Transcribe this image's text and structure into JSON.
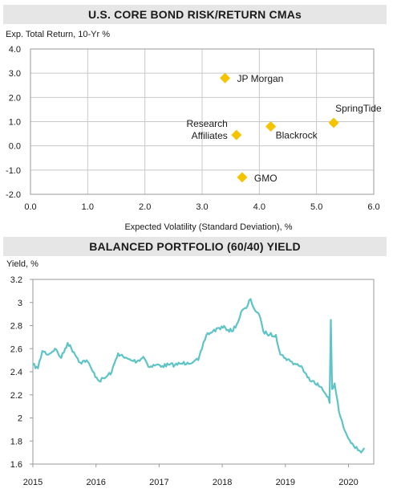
{
  "chart_data": [
    {
      "type": "scatter",
      "title": "U.S. CORE BOND RISK/RETURN CMAs",
      "ylabel": "Exp. Total Return, 10-Yr %",
      "xlabel": "Expected Volatility (Standard Deviation), %",
      "xlim": [
        0,
        6
      ],
      "ylim": [
        -2,
        4
      ],
      "xticks": [
        "0.0",
        "1.0",
        "2.0",
        "3.0",
        "4.0",
        "5.0",
        "6.0"
      ],
      "yticks": [
        "4.0",
        "3.0",
        "2.0",
        "1.0",
        "0.0",
        "-1.0",
        "-2.0"
      ],
      "grid": true,
      "marker_color": "#f5c400",
      "points": [
        {
          "label": "JP Morgan",
          "x": 3.4,
          "y": 2.8
        },
        {
          "label": "Research Affiliates",
          "label_lines": [
            "Research",
            "Affiliates"
          ],
          "x": 3.6,
          "y": 0.45
        },
        {
          "label": "Blackrock",
          "x": 4.2,
          "y": 0.8
        },
        {
          "label": "SpringTide",
          "x": 5.3,
          "y": 0.95
        },
        {
          "label": "GMO",
          "x": 3.7,
          "y": -1.3
        }
      ]
    },
    {
      "type": "line",
      "title": "BALANCED PORTFOLIO (60/40) YIELD",
      "ylabel": "Yield, %",
      "xlim": [
        2015,
        2020.4
      ],
      "ylim": [
        1.6,
        3.2
      ],
      "xticks": [
        "2015",
        "2016",
        "2017",
        "2018",
        "2019",
        "2020"
      ],
      "yticks": [
        "3.2",
        "3",
        "2.8",
        "2.6",
        "2.4",
        "2.2",
        "2",
        "1.8",
        "1.6"
      ],
      "grid": false,
      "line_color": "#5ec4c6",
      "x": [
        2015.0,
        2015.08,
        2015.15,
        2015.25,
        2015.35,
        2015.45,
        2015.55,
        2015.65,
        2015.75,
        2015.85,
        2015.95,
        2016.05,
        2016.15,
        2016.25,
        2016.35,
        2016.45,
        2016.55,
        2016.65,
        2016.75,
        2016.85,
        2016.95,
        2017.05,
        2017.15,
        2017.25,
        2017.35,
        2017.45,
        2017.55,
        2017.62,
        2017.68,
        2017.75,
        2017.85,
        2017.95,
        2018.05,
        2018.15,
        2018.25,
        2018.3,
        2018.38,
        2018.45,
        2018.5,
        2018.58,
        2018.65,
        2018.75,
        2018.85,
        2018.92,
        2019.0,
        2019.08,
        2019.15,
        2019.25,
        2019.35,
        2019.45,
        2019.55,
        2019.62,
        2019.68,
        2019.7,
        2019.72,
        2019.74,
        2019.78,
        2019.85,
        2019.92,
        2020.0,
        2020.08,
        2020.15,
        2020.2,
        2020.25
      ],
      "values": [
        2.46,
        2.43,
        2.58,
        2.55,
        2.6,
        2.52,
        2.65,
        2.57,
        2.48,
        2.5,
        2.4,
        2.32,
        2.35,
        2.4,
        2.56,
        2.52,
        2.5,
        2.49,
        2.53,
        2.44,
        2.46,
        2.45,
        2.46,
        2.46,
        2.47,
        2.48,
        2.49,
        2.5,
        2.6,
        2.72,
        2.75,
        2.78,
        2.78,
        2.75,
        2.83,
        2.92,
        2.95,
        3.03,
        2.95,
        2.9,
        2.75,
        2.72,
        2.72,
        2.55,
        2.52,
        2.49,
        2.47,
        2.45,
        2.35,
        2.32,
        2.27,
        2.22,
        2.18,
        2.13,
        2.85,
        2.25,
        2.3,
        2.05,
        1.92,
        1.82,
        1.76,
        1.72,
        1.7,
        1.74
      ]
    }
  ]
}
